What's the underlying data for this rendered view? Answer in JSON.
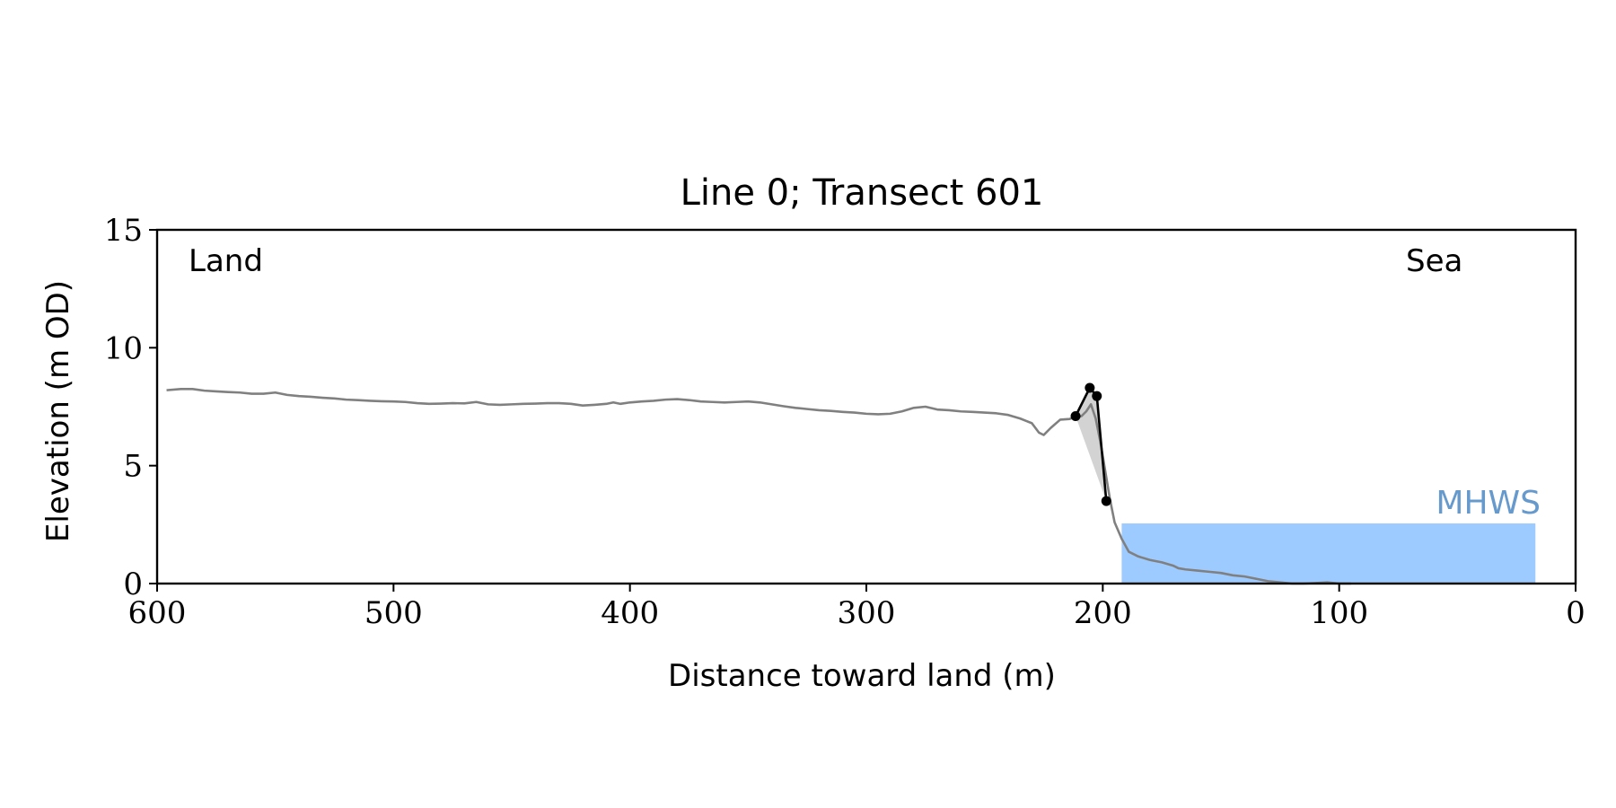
{
  "chart_data": {
    "type": "line",
    "title": "Line 0; Transect 601",
    "xlabel": "Distance toward land (m)",
    "ylabel": "Elevation (m OD)",
    "xlim": [
      600,
      0
    ],
    "ylim": [
      0,
      15
    ],
    "x_reversed": true,
    "xticks": [
      600,
      500,
      400,
      300,
      200,
      100,
      0
    ],
    "yticks": [
      0,
      5,
      10,
      15
    ],
    "grid": false,
    "annotations": {
      "land": "Land",
      "sea": "Sea",
      "mhws": "MHWS"
    },
    "mhws": {
      "elevation": 2.55,
      "x_from": 192,
      "x_to": 17
    },
    "profile": {
      "x": [
        596,
        590,
        585,
        580,
        575,
        570,
        565,
        560,
        555,
        550,
        545,
        540,
        535,
        530,
        525,
        520,
        515,
        510,
        505,
        500,
        495,
        490,
        485,
        480,
        475,
        470,
        465,
        460,
        455,
        450,
        445,
        440,
        435,
        430,
        425,
        420,
        415,
        410,
        407,
        404,
        400,
        395,
        390,
        385,
        380,
        375,
        370,
        365,
        360,
        355,
        350,
        345,
        340,
        335,
        330,
        325,
        320,
        315,
        310,
        305,
        300,
        295,
        290,
        285,
        280,
        275,
        270,
        265,
        260,
        255,
        250,
        245,
        240,
        235,
        230,
        227,
        225,
        222,
        218,
        214,
        212,
        209,
        207,
        205,
        203,
        201,
        199,
        197,
        195,
        192,
        189,
        185,
        180,
        175,
        170,
        168,
        165,
        160,
        155,
        150,
        145,
        140,
        135,
        130,
        125,
        120,
        115,
        110,
        105,
        100,
        95
      ],
      "y": [
        8.2,
        8.25,
        8.25,
        8.18,
        8.15,
        8.12,
        8.1,
        8.05,
        8.05,
        8.1,
        8.0,
        7.95,
        7.92,
        7.88,
        7.85,
        7.8,
        7.78,
        7.75,
        7.73,
        7.72,
        7.7,
        7.65,
        7.62,
        7.63,
        7.65,
        7.64,
        7.7,
        7.6,
        7.58,
        7.6,
        7.62,
        7.63,
        7.65,
        7.65,
        7.62,
        7.55,
        7.58,
        7.62,
        7.68,
        7.62,
        7.68,
        7.72,
        7.75,
        7.8,
        7.82,
        7.78,
        7.72,
        7.7,
        7.68,
        7.7,
        7.72,
        7.68,
        7.6,
        7.52,
        7.45,
        7.4,
        7.35,
        7.32,
        7.28,
        7.25,
        7.2,
        7.18,
        7.2,
        7.3,
        7.45,
        7.5,
        7.38,
        7.35,
        7.3,
        7.28,
        7.25,
        7.22,
        7.15,
        7.0,
        6.8,
        6.4,
        6.3,
        6.6,
        6.95,
        6.98,
        7.05,
        7.1,
        7.3,
        7.6,
        7.0,
        6.0,
        4.8,
        3.6,
        2.6,
        1.9,
        1.35,
        1.15,
        1.0,
        0.9,
        0.75,
        0.65,
        0.6,
        0.55,
        0.5,
        0.45,
        0.35,
        0.3,
        0.2,
        0.1,
        0.05,
        0.0,
        0.0,
        0.02,
        0.05,
        0.0,
        0.0
      ]
    },
    "cliff_points": {
      "x": [
        211.5,
        205.5,
        202.5,
        198.5
      ],
      "y": [
        7.1,
        8.3,
        7.95,
        3.5
      ]
    }
  }
}
